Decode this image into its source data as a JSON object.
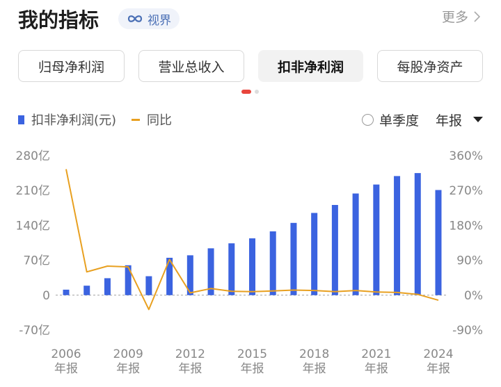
{
  "header": {
    "title": "我的指标",
    "badge_label": "视界",
    "more_label": "更多"
  },
  "tabs": [
    {
      "label": "归母净利润",
      "active": false
    },
    {
      "label": "营业总收入",
      "active": false
    },
    {
      "label": "扣非净利润",
      "active": true
    },
    {
      "label": "每股净资产",
      "active": false
    }
  ],
  "legend": {
    "bar_label": "扣非净利润(元)",
    "line_label": "同比"
  },
  "options": {
    "quarter_label": "单季度",
    "period_label": "年报"
  },
  "colors": {
    "bar": "#3b63e0",
    "line": "#e8a020",
    "active_dot": "#e8453c"
  },
  "chart_data": {
    "type": "bar",
    "title": "",
    "left_axis": {
      "ticks": [
        "280亿",
        "210亿",
        "140亿",
        "70亿",
        "0",
        "-70亿"
      ],
      "range": [
        -70,
        280
      ],
      "unit": "亿"
    },
    "right_axis": {
      "ticks": [
        "360%",
        "270%",
        "180%",
        "90%",
        "0%",
        "-90%"
      ],
      "range": [
        -90,
        360
      ]
    },
    "x_tick_labels": [
      {
        "year": "2006",
        "sub": "年报"
      },
      {
        "year": "2009",
        "sub": "年报"
      },
      {
        "year": "2012",
        "sub": "年报"
      },
      {
        "year": "2015",
        "sub": "年报"
      },
      {
        "year": "2018",
        "sub": "年报"
      },
      {
        "year": "2021",
        "sub": "年报"
      },
      {
        "year": "2024",
        "sub": "年报"
      }
    ],
    "x": [
      2006,
      2007,
      2008,
      2009,
      2010,
      2011,
      2012,
      2013,
      2014,
      2015,
      2016,
      2017,
      2018,
      2019,
      2020,
      2021,
      2022,
      2023,
      2024
    ],
    "series": [
      {
        "name": "扣非净利润(元)",
        "type": "bar",
        "axis": "left",
        "values": [
          11,
          19,
          34,
          60,
          38,
          75,
          80,
          94,
          104,
          114,
          128,
          145,
          165,
          181,
          204,
          222,
          239,
          245,
          211
        ]
      },
      {
        "name": "同比",
        "type": "line",
        "axis": "right",
        "values": [
          325,
          60,
          75,
          73,
          -37,
          92,
          6,
          17,
          10,
          9,
          11,
          13,
          12,
          9,
          12,
          8,
          7,
          2,
          -13
        ]
      }
    ],
    "grid": false,
    "zero_line": "dashed"
  }
}
